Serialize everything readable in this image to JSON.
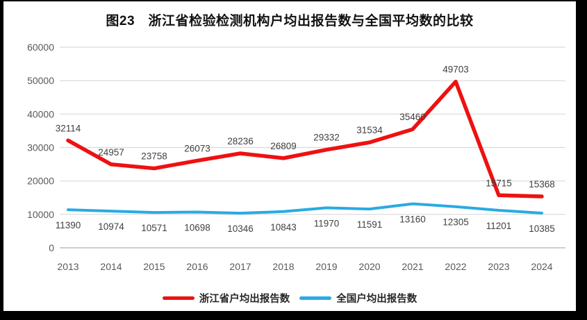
{
  "title": "图23　浙江省检验检测机构户均出报告数与全国平均数的比较",
  "chart_data": {
    "type": "line",
    "title": "图23　浙江省检验检测机构户均出报告数与全国平均数的比较",
    "categories": [
      "2013",
      "2014",
      "2015",
      "2016",
      "2017",
      "2018",
      "2019",
      "2020",
      "2021",
      "2022",
      "2023",
      "2024"
    ],
    "series": [
      {
        "name": "浙江省户均出报告数",
        "color": "#ee1111",
        "label_position": "above",
        "values": [
          32114,
          24957,
          23758,
          26073,
          28236,
          26809,
          29332,
          31534,
          35460,
          49703,
          15715,
          15368
        ]
      },
      {
        "name": "全国户均出报告数",
        "color": "#29abe2",
        "label_position": "below",
        "values": [
          11390,
          10974,
          10571,
          10698,
          10346,
          10843,
          11970,
          11591,
          13160,
          12305,
          11201,
          10385
        ]
      }
    ],
    "xlabel": "",
    "ylabel": "",
    "ylim": [
      0,
      60000
    ],
    "yticks": [
      0,
      10000,
      20000,
      30000,
      40000,
      50000,
      60000
    ],
    "ytick_labels": [
      "0",
      "10000",
      "20000",
      "30000",
      "40000",
      "50000",
      "60000"
    ],
    "grid": true,
    "legend_position": "bottom",
    "colors": {
      "gridline": "#d9d9d9",
      "axis_line": "#bfbfbf",
      "tick_label": "#595959",
      "data_label": "#404040"
    }
  }
}
